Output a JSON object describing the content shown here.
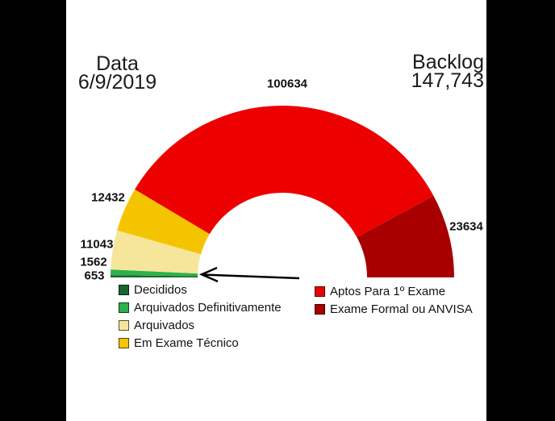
{
  "header": {
    "date_label": "Data",
    "date_value": "6/9/2019",
    "backlog_label": "Backlog",
    "backlog_value": "147,743"
  },
  "chart_data": {
    "type": "pie",
    "variant": "half-donut-gauge",
    "title": "",
    "total_shown": "147,743",
    "angle_span_degrees": 180,
    "order": "segments drawn left-to-right over the top, starting at left baseline",
    "segments": [
      {
        "name": "Decididos",
        "value": 653,
        "color": "#17682C"
      },
      {
        "name": "Arquivados Definitivamente",
        "value": 1562,
        "color": "#2DB14C"
      },
      {
        "name": "Arquivados",
        "value": 11043,
        "color": "#F5E69C"
      },
      {
        "name": "Em Exame Técnico",
        "value": 12432,
        "color": "#F5C400"
      },
      {
        "name": "Aptos Para 1º Exame",
        "value": 100634,
        "color": "#EC0000"
      },
      {
        "name": "Exame Formal ou ANVISA",
        "value": 23634,
        "color": "#A80000"
      }
    ],
    "legend_left_indices": [
      0,
      1,
      2,
      3
    ],
    "legend_right_indices": [
      4,
      5
    ],
    "annotation": {
      "type": "arrow",
      "points_at": "thin green segments (1562 / 653)"
    }
  }
}
